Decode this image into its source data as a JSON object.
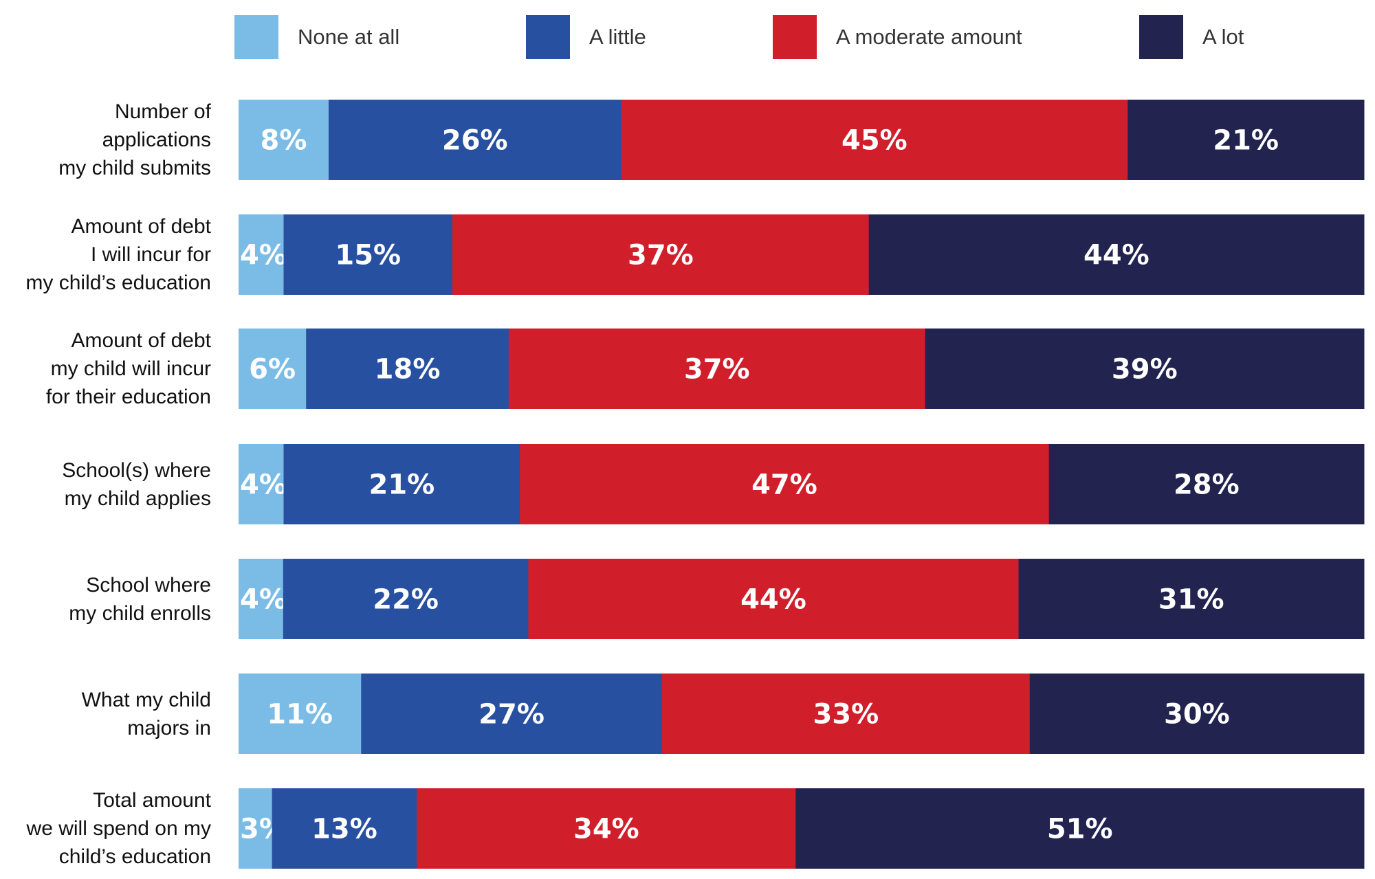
{
  "chart_data": {
    "type": "bar",
    "orientation": "horizontal",
    "stacked": true,
    "legend_position": "top",
    "grid": false,
    "series": [
      {
        "name": "None at all",
        "color": "#7bbce6",
        "values": [
          8,
          4,
          6,
          4,
          4,
          11,
          3
        ]
      },
      {
        "name": "A little",
        "color": "#2850a0",
        "values": [
          26,
          15,
          18,
          21,
          22,
          27,
          13
        ]
      },
      {
        "name": "A moderate amount",
        "color": "#d01f2b",
        "values": [
          45,
          37,
          37,
          47,
          44,
          33,
          34
        ]
      },
      {
        "name": "A lot",
        "color": "#22234f",
        "values": [
          21,
          44,
          39,
          28,
          31,
          30,
          51
        ]
      }
    ],
    "categories": [
      [
        "Number of",
        "applications",
        "my child submits"
      ],
      [
        "Amount of debt",
        "I will incur for",
        "my child’s education"
      ],
      [
        "Amount of debt",
        "my child will incur",
        "for their education"
      ],
      [
        "School(s) where",
        "my child applies"
      ],
      [
        "School where",
        "my child enrolls"
      ],
      [
        "What my child",
        "majors in"
      ],
      [
        "Total amount",
        "we will spend on my",
        "child’s education"
      ]
    ],
    "value_suffix": "%"
  }
}
